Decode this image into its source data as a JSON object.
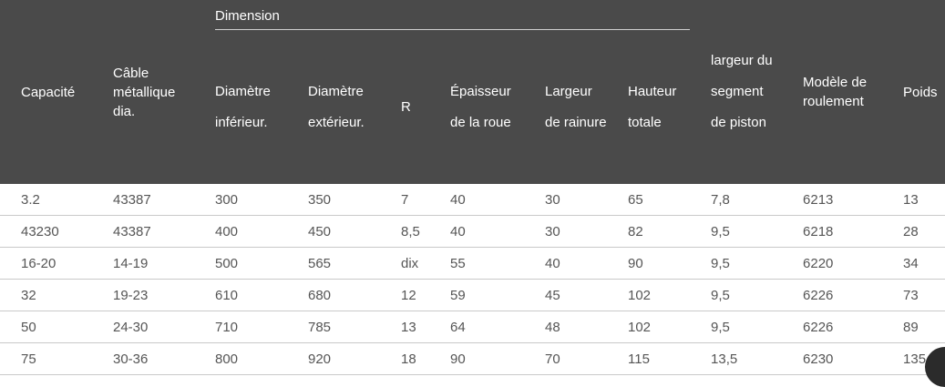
{
  "table": {
    "group_header": "Dimension",
    "headers": {
      "capacity": "Capacité",
      "cable": "Câble métallique dia.",
      "inner_diameter": "Diamètre inférieur.",
      "outer_diameter": "Diamètre extérieur.",
      "r": "R",
      "wheel_thickness": "Épaisseur de la roue",
      "groove_width": "Largeur de rainure",
      "total_height": "Hauteur totale",
      "piston_width": "largeur du segment de piston",
      "bearing": "Modèle de roulement",
      "weight": "Poids"
    },
    "rows": [
      [
        "3.2",
        "43387",
        "300",
        "350",
        "7",
        "40",
        "30",
        "65",
        "7,8",
        "6213",
        "13"
      ],
      [
        "43230",
        "43387",
        "400",
        "450",
        "8,5",
        "40",
        "30",
        "82",
        "9,5",
        "6218",
        "28"
      ],
      [
        "16-20",
        "14-19",
        "500",
        "565",
        "dix",
        "55",
        "40",
        "90",
        "9,5",
        "6220",
        "34"
      ],
      [
        "32",
        "19-23",
        "610",
        "680",
        "12",
        "59",
        "45",
        "102",
        "9,5",
        "6226",
        "73"
      ],
      [
        "50",
        "24-30",
        "710",
        "785",
        "13",
        "64",
        "48",
        "102",
        "9,5",
        "6226",
        "89"
      ],
      [
        "75",
        "30-36",
        "800",
        "920",
        "18",
        "90",
        "70",
        "115",
        "13,5",
        "6230",
        "135"
      ]
    ]
  }
}
